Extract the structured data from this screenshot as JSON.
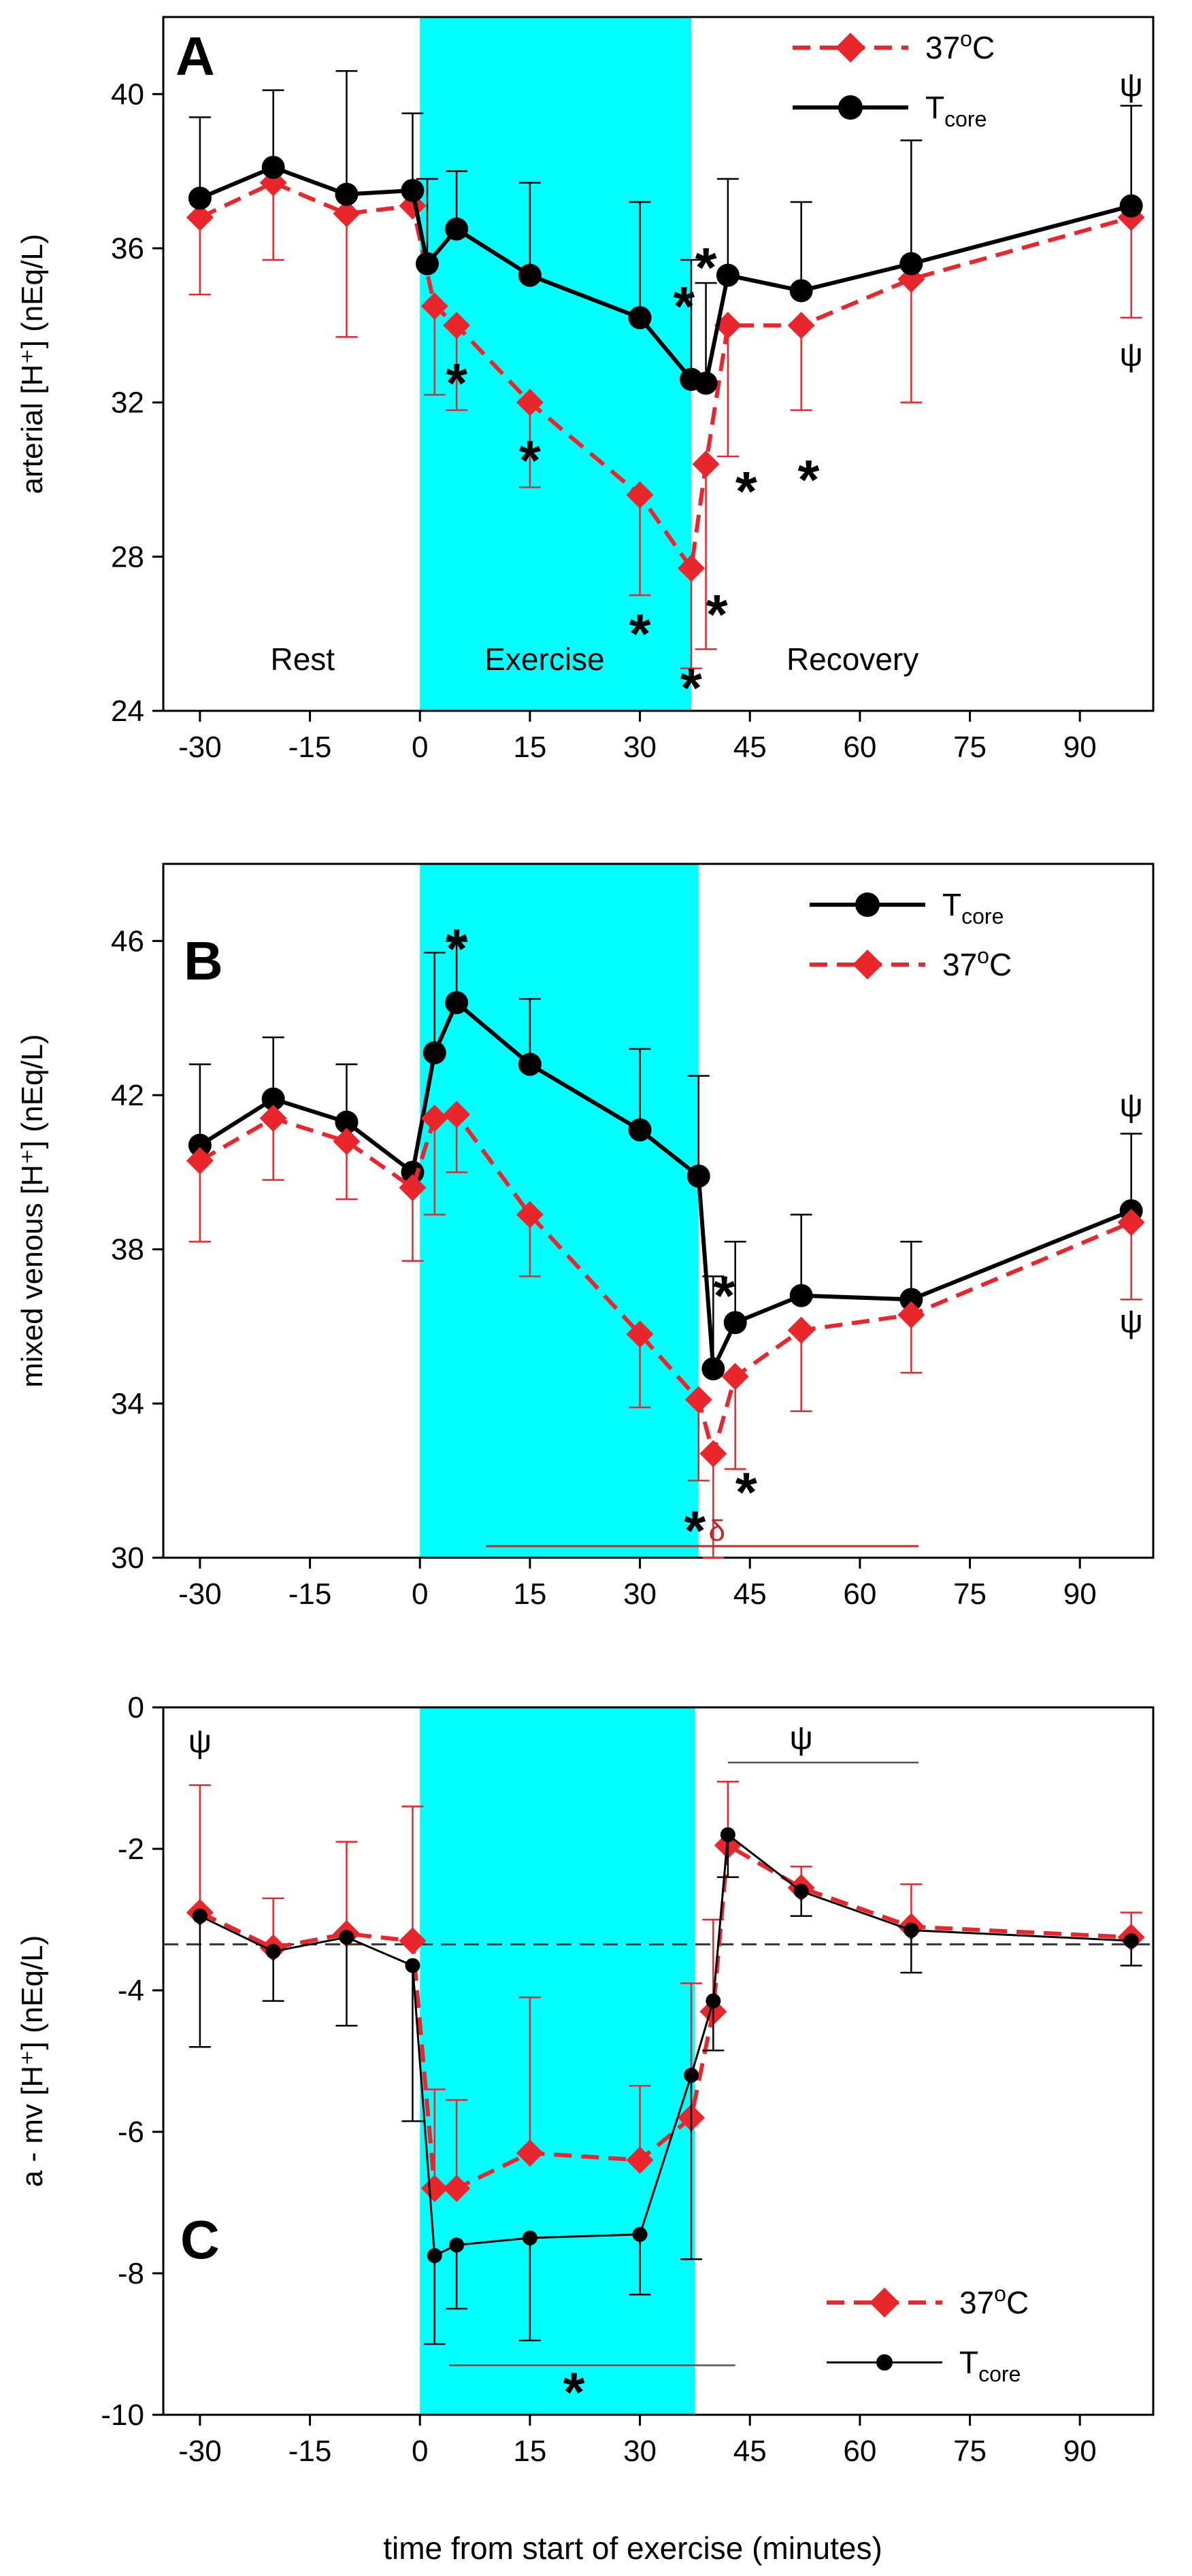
{
  "colors": {
    "red": "#e8262c",
    "black": "#000000",
    "exercise_band": "#00ffff",
    "dark_red": "#c0282a"
  },
  "figure": {
    "xlabel": "time from start of exercise (minutes)"
  },
  "chart_data": [
    {
      "panel": "A",
      "type": "line",
      "ylabel": "arterial [H⁺] (nEq/L)",
      "xlim": [
        -35,
        100
      ],
      "ylim": [
        24,
        42
      ],
      "xticks": [
        -30,
        -15,
        0,
        15,
        30,
        45,
        60,
        75,
        90
      ],
      "xtick_labels": [
        "-30",
        "-15",
        "0",
        "15",
        "30",
        "45",
        "60",
        "75",
        "90"
      ],
      "yticks": [
        24,
        28,
        32,
        36,
        40
      ],
      "ytick_labels": [
        "24",
        "28",
        "32",
        "36",
        "40"
      ],
      "exercise_band": [
        0,
        37
      ],
      "legend": [
        "37°C",
        "Tcore"
      ],
      "legend_placement": "top-right",
      "phase_labels": [
        "Rest",
        "Exercise",
        "Recovery"
      ],
      "series": [
        {
          "name": "37°C",
          "color": "#e8262c",
          "style": "dashed",
          "marker": "diamond",
          "x": [
            -30,
            -20,
            -10,
            -1,
            2,
            5,
            15,
            30,
            37,
            39,
            42,
            52,
            67,
            97
          ],
          "y": [
            36.8,
            37.7,
            36.9,
            37.1,
            34.5,
            34.0,
            32.0,
            29.6,
            27.7,
            30.4,
            34.0,
            34.0,
            35.2,
            36.8
          ],
          "err": [
            2.0,
            2.0,
            3.2,
            0,
            2.3,
            2.2,
            2.2,
            2.6,
            2.6,
            4.8,
            3.4,
            2.2,
            3.2,
            2.6
          ],
          "err_dir": "down"
        },
        {
          "name": "Tcore",
          "color": "#000000",
          "style": "solid",
          "marker": "circle",
          "x": [
            -30,
            -20,
            -10,
            -1,
            1,
            5,
            15,
            30,
            37,
            39,
            42,
            52,
            67,
            97
          ],
          "y": [
            37.3,
            38.1,
            37.4,
            37.5,
            35.6,
            36.5,
            35.3,
            34.2,
            32.6,
            32.5,
            35.3,
            34.9,
            35.6,
            37.1
          ],
          "err": [
            2.1,
            2.0,
            3.2,
            2.0,
            2.2,
            1.5,
            2.4,
            3.0,
            3.1,
            2.6,
            2.5,
            2.3,
            3.2,
            2.6
          ],
          "err_dir": "up"
        }
      ],
      "annotations": [
        {
          "text": "*",
          "x": 5,
          "y": 32.6
        },
        {
          "text": "*",
          "x": 15,
          "y": 30.6
        },
        {
          "text": "*",
          "x": 30,
          "y": 26.1
        },
        {
          "text": "*",
          "x": 37,
          "y": 24.7
        },
        {
          "text": "*",
          "x": 40.5,
          "y": 26.6
        },
        {
          "text": "*",
          "x": 44.5,
          "y": 29.8
        },
        {
          "text": "*",
          "x": 53,
          "y": 30.1
        },
        {
          "text": "*",
          "x": 36,
          "y": 34.6
        },
        {
          "text": "*",
          "x": 39,
          "y": 35.6
        },
        {
          "text": "ψ",
          "x": 97,
          "y": 40.2
        },
        {
          "text": "ψ",
          "x": 97,
          "y": 33.2
        }
      ]
    },
    {
      "panel": "B",
      "type": "line",
      "ylabel": "mixed venous [H⁺] (nEq/L)",
      "xlim": [
        -35,
        100
      ],
      "ylim": [
        30,
        48
      ],
      "xticks": [
        -30,
        -15,
        0,
        15,
        30,
        45,
        60,
        75,
        90
      ],
      "xtick_labels": [
        "-30",
        "-15",
        "0",
        "15",
        "30",
        "45",
        "60",
        "75",
        "90"
      ],
      "yticks": [
        30,
        34,
        38,
        42,
        46
      ],
      "ytick_labels": [
        "30",
        "34",
        "38",
        "42",
        "46"
      ],
      "exercise_band": [
        0,
        38
      ],
      "legend": [
        "Tcore",
        "37°C"
      ],
      "legend_placement": "top-right",
      "delta_line": {
        "text": "δ",
        "x1": 9,
        "x2": 68,
        "y": 30.3
      },
      "series": [
        {
          "name": "Tcore",
          "color": "#000000",
          "style": "solid",
          "marker": "circle",
          "x": [
            -30,
            -20,
            -10,
            -1,
            2,
            5,
            15,
            30,
            38,
            40,
            43,
            52,
            67,
            97
          ],
          "y": [
            40.7,
            41.9,
            41.3,
            40.0,
            43.1,
            44.4,
            42.8,
            41.1,
            39.9,
            34.9,
            36.1,
            36.8,
            36.7,
            39.0
          ],
          "err": [
            2.1,
            1.6,
            1.5,
            0,
            2.6,
            1.6,
            1.7,
            2.1,
            2.6,
            2.4,
            2.1,
            2.1,
            1.5,
            2.0
          ],
          "err_dir": "up"
        },
        {
          "name": "37°C",
          "color": "#e8262c",
          "style": "dashed",
          "marker": "diamond",
          "x": [
            -30,
            -20,
            -10,
            -1,
            2,
            5,
            15,
            30,
            38,
            40,
            43,
            52,
            67,
            97
          ],
          "y": [
            40.3,
            41.4,
            40.8,
            39.6,
            41.4,
            41.5,
            38.9,
            35.8,
            34.1,
            32.7,
            34.7,
            35.9,
            36.3,
            38.7
          ],
          "err": [
            2.1,
            1.6,
            1.5,
            1.9,
            2.5,
            1.5,
            1.6,
            1.9,
            2.1,
            2.7,
            2.4,
            2.1,
            1.5,
            2.0
          ],
          "err_dir": "down"
        }
      ],
      "annotations": [
        {
          "text": "*",
          "x": 5,
          "y": 45.9
        },
        {
          "text": "*",
          "x": 41.5,
          "y": 36.9
        },
        {
          "text": "*",
          "x": 37.5,
          "y": 30.8
        },
        {
          "text": "*",
          "x": 44.5,
          "y": 31.8
        },
        {
          "text": "ψ",
          "x": 97,
          "y": 41.7
        },
        {
          "text": "ψ",
          "x": 97,
          "y": 36.1
        }
      ]
    },
    {
      "panel": "C",
      "type": "line",
      "ylabel": "a - mv [H⁺] (nEq/L)",
      "xlim": [
        -35,
        100
      ],
      "ylim": [
        -10,
        0
      ],
      "xticks": [
        -30,
        -15,
        0,
        15,
        30,
        45,
        60,
        75,
        90
      ],
      "xtick_labels": [
        "-30",
        "-15",
        "0",
        "15",
        "30",
        "45",
        "60",
        "75",
        "90"
      ],
      "yticks": [
        -10,
        -8,
        -6,
        -4,
        -2,
        0
      ],
      "ytick_labels": [
        "-10",
        "-8",
        "-6",
        "-4",
        "-2",
        "0"
      ],
      "exercise_band": [
        0,
        37.5
      ],
      "legend": [
        "37°C",
        "Tcore"
      ],
      "legend_placement": "bottom-right",
      "reference_line_y": -3.35,
      "sig_line_exercise": {
        "text": "*",
        "x1": 4,
        "x2": 43,
        "y": -9.3
      },
      "sig_line_recovery": {
        "text": "ψ",
        "x1": 42,
        "x2": 68,
        "y": -0.78
      },
      "series": [
        {
          "name": "37°C",
          "color": "#e8262c",
          "style": "dashed",
          "marker": "diamond",
          "x": [
            -30,
            -20,
            -10,
            -1,
            2,
            5,
            15,
            30,
            37,
            40,
            42,
            52,
            67,
            97
          ],
          "y": [
            -2.9,
            -3.4,
            -3.2,
            -3.3,
            -6.8,
            -6.8,
            -6.3,
            -6.4,
            -5.8,
            -4.3,
            -1.95,
            -2.55,
            -3.1,
            -3.25
          ],
          "err": [
            1.8,
            0.7,
            1.3,
            1.9,
            1.4,
            1.25,
            2.2,
            1.05,
            1.9,
            1.3,
            0.9,
            0.3,
            0.6,
            0.35
          ],
          "err_dir": "up"
        },
        {
          "name": "Tcore",
          "color": "#000000",
          "style": "solid",
          "marker": "circle",
          "x": [
            -30,
            -20,
            -10,
            -1,
            2,
            5,
            15,
            30,
            37,
            40,
            42,
            52,
            67,
            97
          ],
          "y": [
            -2.95,
            -3.45,
            -3.25,
            -3.65,
            -7.75,
            -7.6,
            -7.5,
            -7.45,
            -5.2,
            -4.15,
            -1.8,
            -2.6,
            -3.15,
            -3.3
          ],
          "err": [
            1.85,
            0.7,
            1.25,
            2.2,
            1.25,
            0.9,
            1.45,
            0.85,
            2.6,
            0.7,
            0.6,
            0.35,
            0.6,
            0.35
          ],
          "err_dir": "down"
        }
      ],
      "annotations": [
        {
          "text": "ψ",
          "x": -30,
          "y": -0.5
        }
      ]
    }
  ]
}
